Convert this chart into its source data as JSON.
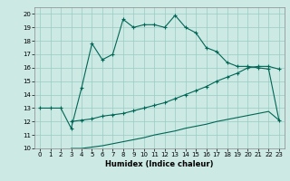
{
  "title": "",
  "xlabel": "Humidex (Indice chaleur)",
  "xlim": [
    -0.5,
    23.5
  ],
  "ylim": [
    10,
    20.5
  ],
  "yticks": [
    10,
    11,
    12,
    13,
    14,
    15,
    16,
    17,
    18,
    19,
    20
  ],
  "xticks": [
    0,
    1,
    2,
    3,
    4,
    5,
    6,
    7,
    8,
    9,
    10,
    11,
    12,
    13,
    14,
    15,
    16,
    17,
    18,
    19,
    20,
    21,
    22,
    23
  ],
  "bg_color": "#cce9e4",
  "line_color": "#006655",
  "grid_color": "#99ccc4",
  "line1_x": [
    0,
    1,
    2,
    3,
    4,
    5,
    6,
    7,
    8,
    9,
    10,
    11,
    12,
    13,
    14,
    15,
    16,
    17,
    18,
    19,
    20,
    21,
    22,
    23
  ],
  "line1_y": [
    13,
    13,
    13,
    11.5,
    14.5,
    17.8,
    16.6,
    17.0,
    19.6,
    19.0,
    19.2,
    19.2,
    19.0,
    19.9,
    19.0,
    18.6,
    17.5,
    17.2,
    16.4,
    16.1,
    16.1,
    16.0,
    15.9,
    12.1
  ],
  "line2_x": [
    3,
    4,
    5,
    6,
    7,
    8,
    9,
    10,
    11,
    12,
    13,
    14,
    15,
    16,
    17,
    18,
    19,
    20,
    21,
    22,
    23
  ],
  "line2_y": [
    12.0,
    12.1,
    12.2,
    12.4,
    12.5,
    12.6,
    12.8,
    13.0,
    13.2,
    13.4,
    13.7,
    14.0,
    14.3,
    14.6,
    15.0,
    15.3,
    15.6,
    16.0,
    16.1,
    16.1,
    15.9
  ],
  "line3_x": [
    3,
    4,
    5,
    6,
    7,
    8,
    9,
    10,
    11,
    12,
    13,
    14,
    15,
    16,
    17,
    18,
    19,
    20,
    21,
    22,
    23
  ],
  "line3_y": [
    10.0,
    10.0,
    10.1,
    10.2,
    10.35,
    10.5,
    10.65,
    10.8,
    11.0,
    11.15,
    11.3,
    11.5,
    11.65,
    11.8,
    12.0,
    12.15,
    12.3,
    12.45,
    12.6,
    12.75,
    12.1
  ]
}
